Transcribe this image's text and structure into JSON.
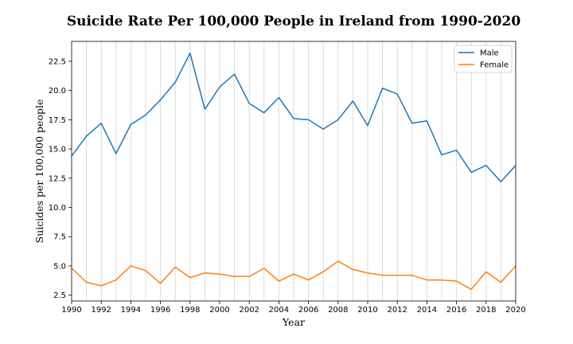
{
  "chart_data": {
    "type": "line",
    "title": "Suicide Rate Per 100,000 People in Ireland from 1990-2020",
    "xlabel": "Year",
    "ylabel": "Suicides per 100,000 people",
    "x": [
      1990,
      1991,
      1992,
      1993,
      1994,
      1995,
      1996,
      1997,
      1998,
      1999,
      2000,
      2001,
      2002,
      2003,
      2004,
      2005,
      2006,
      2007,
      2008,
      2009,
      2010,
      2011,
      2012,
      2013,
      2014,
      2015,
      2016,
      2017,
      2018,
      2019,
      2020
    ],
    "xlim": [
      1990,
      2020
    ],
    "ylim": [
      2.0,
      24.2
    ],
    "x_ticks": [
      "1990",
      "1992",
      "1994",
      "1996",
      "1998",
      "2000",
      "2002",
      "2004",
      "2006",
      "2008",
      "2010",
      "2012",
      "2014",
      "2016",
      "2018",
      "2020"
    ],
    "y_ticks": [
      "2.5",
      "5.0",
      "7.5",
      "10.0",
      "12.5",
      "15.0",
      "17.5",
      "20.0",
      "22.5"
    ],
    "grid": "vertical",
    "legend_position": "top-right",
    "series": [
      {
        "name": "Male",
        "color": "#1f77b4",
        "values": [
          14.4,
          16.1,
          17.2,
          14.6,
          17.1,
          17.9,
          19.2,
          20.7,
          23.2,
          18.4,
          20.3,
          21.4,
          18.9,
          18.1,
          19.4,
          17.6,
          17.5,
          16.7,
          17.5,
          19.1,
          17.0,
          20.2,
          19.7,
          17.2,
          17.4,
          14.5,
          14.9,
          13.0,
          13.6,
          12.2,
          13.6
        ]
      },
      {
        "name": "Female",
        "color": "#ff7f0e",
        "values": [
          4.8,
          3.6,
          3.3,
          3.8,
          5.0,
          4.6,
          3.5,
          4.9,
          4.0,
          4.4,
          4.3,
          4.1,
          4.1,
          4.8,
          3.7,
          4.3,
          3.8,
          4.5,
          5.4,
          4.7,
          4.4,
          4.2,
          4.2,
          4.2,
          3.8,
          3.8,
          3.7,
          3.0,
          4.5,
          3.6,
          5.0
        ]
      }
    ]
  }
}
